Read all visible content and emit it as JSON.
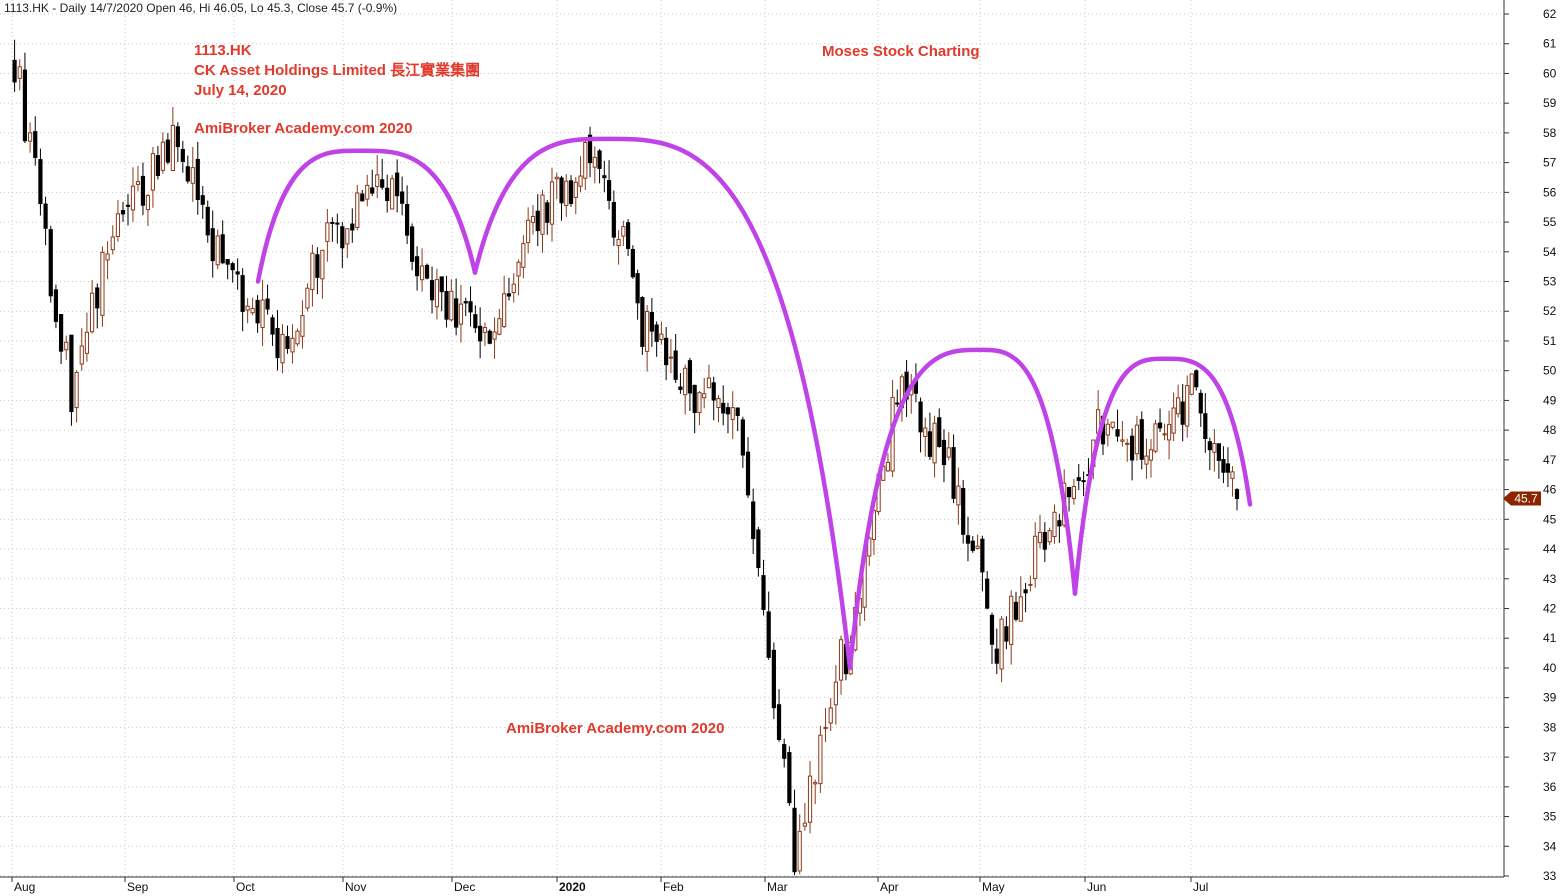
{
  "header": "1113.HK - Daily 14/7/2020 Open 46, Hi 46.05, Lo 45.3, Close 45.7 (-0.9%)",
  "annotations": {
    "ticker": "1113.HK",
    "company": "CK Asset Holdings Limited  長江實業集團",
    "date": "July 14, 2020",
    "academy_top": "AmiBroker Academy.com  2020",
    "academy_bottom": "AmiBroker Academy.com  2020",
    "brand": "Moses Stock Charting"
  },
  "colors": {
    "background": "#ffffff",
    "grid": "#c8c8c8",
    "bull_candle": "#8b3a1a",
    "bear_candle": "#000000",
    "annotation_text": "#e03a2c",
    "arc": "#c043e8",
    "last_price_tag": "#8b2500"
  },
  "chart_data": {
    "type": "candlestick",
    "title": "1113.HK - Daily 14/7/2020",
    "x_axis_labels": [
      "Aug",
      "Sep",
      "Oct",
      "Nov",
      "Dec",
      "2020",
      "Feb",
      "Mar",
      "Apr",
      "May",
      "Jun",
      "Jul"
    ],
    "y_ticks": [
      33,
      34,
      35,
      36,
      37,
      38,
      39,
      40,
      41,
      42,
      43,
      44,
      45,
      46,
      47,
      48,
      49,
      50,
      51,
      52,
      53,
      54,
      55,
      56,
      57,
      58,
      59,
      60,
      61,
      62
    ],
    "ylim": [
      33,
      62
    ],
    "grid": true,
    "last_price": "45.7",
    "last_bar": {
      "open": 46,
      "high": 46.05,
      "low": 45.3,
      "close": 45.7
    },
    "approx_close_path": [
      {
        "month": "Aug",
        "start": 60.5,
        "low": 49.2,
        "end": 55.5
      },
      {
        "month": "Sep",
        "start": 55.5,
        "high": 57.8,
        "end": 53.5
      },
      {
        "month": "Oct",
        "start": 53.5,
        "low": 50.8,
        "end": 54.6
      },
      {
        "month": "Nov",
        "start": 54.6,
        "high": 56.2,
        "end": 52.5
      },
      {
        "month": "Dec",
        "start": 52.5,
        "low": 50.8,
        "end": 55.0
      },
      {
        "month": "2020",
        "start": 55.0,
        "high": 57.2,
        "end": 53.5
      },
      {
        "month": "Feb",
        "start": 51.8,
        "low": 49.4,
        "end": 49.0
      },
      {
        "month": "Mar",
        "start": 48.5,
        "low": 33.5,
        "end": 40.5
      },
      {
        "month": "Apr",
        "start": 40.5,
        "high": 49.3,
        "end": 47.5
      },
      {
        "month": "May",
        "start": 47.5,
        "low": 40.9,
        "end": 44.0
      },
      {
        "month": "Jun",
        "start": 44.0,
        "high": 48.0,
        "end": 47.5
      },
      {
        "month": "Jul",
        "start": 47.5,
        "high": 49.3,
        "end": 45.7
      }
    ],
    "arcs": [
      {
        "from_month": "Oct",
        "to_month": "Dec",
        "peak": 57.4
      },
      {
        "from_month": "Dec",
        "to_month": "Mar",
        "peak": 57.8
      },
      {
        "from_month": "Mar",
        "to_month": "May",
        "peak": 50.7
      },
      {
        "from_month": "May",
        "to_month": "Jul",
        "peak": 50.4
      }
    ]
  }
}
